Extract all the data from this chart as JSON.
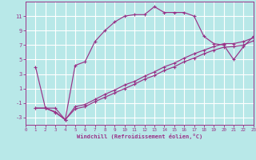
{
  "xlabel": "Windchill (Refroidissement éolien,°C)",
  "bg_color": "#b8e8e8",
  "grid_color": "#ffffff",
  "line_color": "#993388",
  "xlim": [
    0,
    23
  ],
  "ylim": [
    -4,
    13
  ],
  "xticks": [
    0,
    1,
    2,
    3,
    4,
    5,
    6,
    7,
    8,
    9,
    10,
    11,
    12,
    13,
    14,
    15,
    16,
    17,
    18,
    19,
    20,
    21,
    22,
    23
  ],
  "yticks": [
    -3,
    -1,
    1,
    3,
    5,
    7,
    9,
    11
  ],
  "series1_x": [
    1,
    2,
    3,
    4,
    5,
    6,
    7,
    8,
    9,
    10,
    11,
    12,
    13,
    14,
    15,
    16,
    17,
    18,
    19,
    20,
    21,
    22,
    23
  ],
  "series1_y": [
    4.0,
    -1.7,
    -1.7,
    -3.3,
    4.2,
    4.7,
    7.5,
    9.0,
    10.2,
    11.0,
    11.2,
    11.2,
    12.3,
    11.5,
    11.5,
    11.5,
    11.0,
    8.2,
    7.2,
    7.0,
    5.0,
    6.8,
    8.2
  ],
  "series2_x": [
    1,
    2,
    3,
    4,
    5,
    6,
    7,
    8,
    9,
    10,
    11,
    12,
    13,
    14,
    15,
    16,
    17,
    18,
    19,
    20,
    21,
    22,
    23
  ],
  "series2_y": [
    -1.7,
    -1.7,
    -2.2,
    -3.3,
    -1.5,
    -1.2,
    -0.5,
    0.2,
    0.8,
    1.5,
    2.0,
    2.7,
    3.3,
    4.0,
    4.5,
    5.2,
    5.8,
    6.3,
    6.8,
    7.2,
    7.2,
    7.5,
    8.0
  ],
  "series3_x": [
    1,
    2,
    3,
    4,
    5,
    6,
    7,
    8,
    9,
    10,
    11,
    12,
    13,
    14,
    15,
    16,
    17,
    18,
    19,
    20,
    21,
    22,
    23
  ],
  "series3_y": [
    -1.7,
    -1.7,
    -2.3,
    -3.3,
    -1.8,
    -1.5,
    -0.8,
    -0.2,
    0.4,
    1.0,
    1.6,
    2.3,
    2.8,
    3.5,
    4.0,
    4.7,
    5.2,
    5.8,
    6.3,
    6.7,
    6.8,
    7.0,
    7.6
  ]
}
